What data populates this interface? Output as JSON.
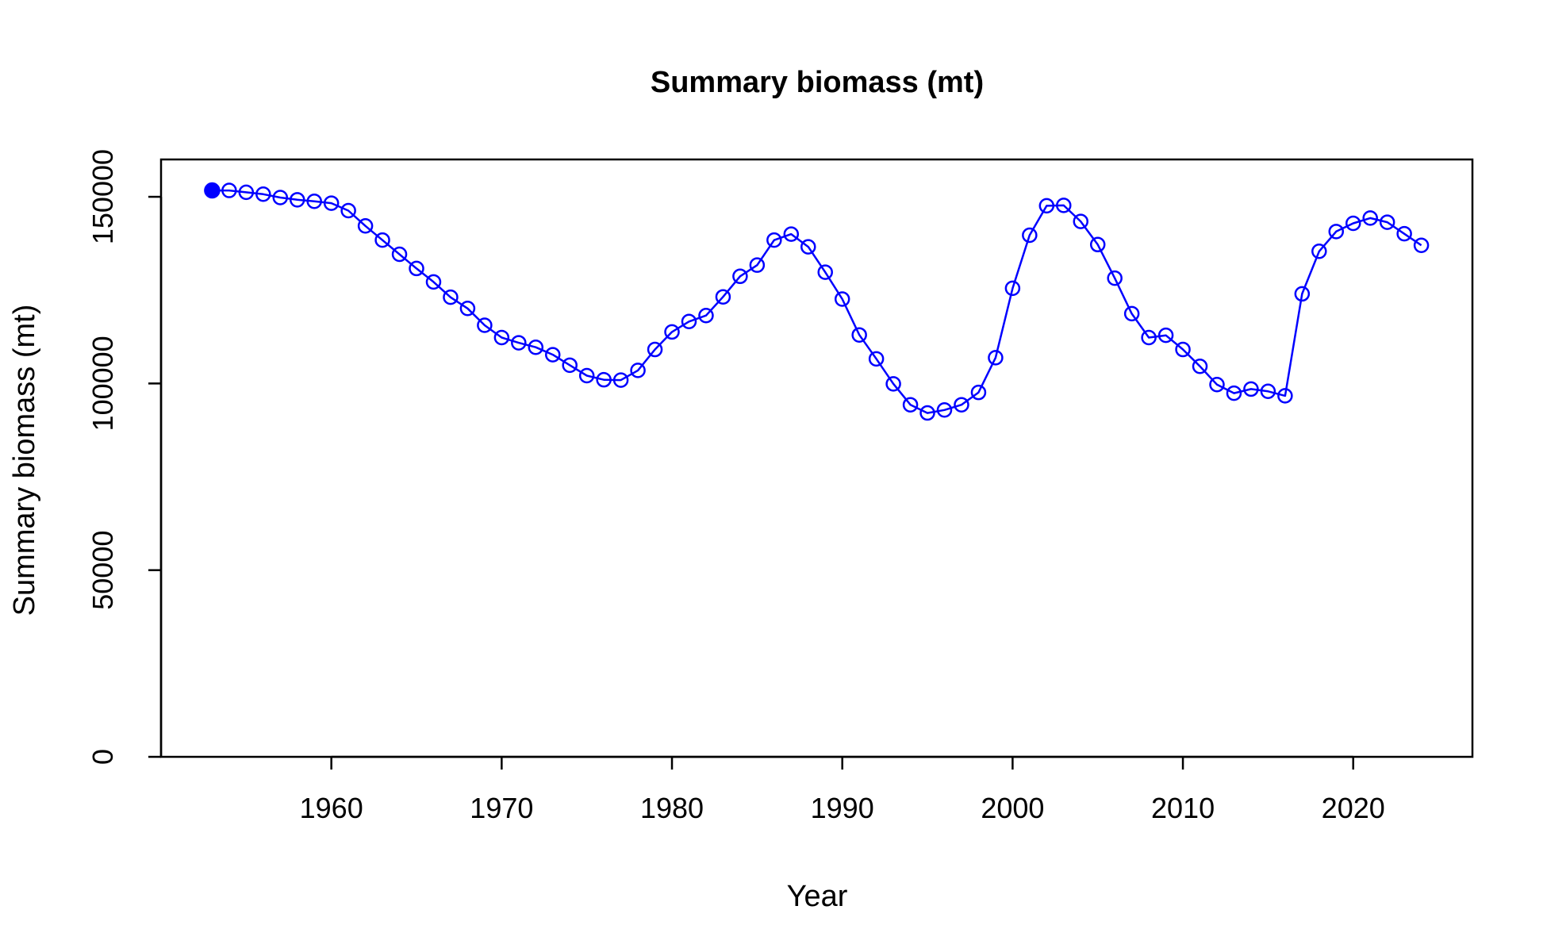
{
  "chart_data": {
    "type": "line",
    "title": "Summary biomass (mt)",
    "xlabel": "Year",
    "ylabel": "Summary biomass (mt)",
    "xlim": [
      1950,
      2027
    ],
    "ylim": [
      0,
      160000
    ],
    "x_ticks": [
      1960,
      1970,
      1980,
      1990,
      2000,
      2010,
      2020
    ],
    "y_ticks": [
      0,
      50000,
      100000,
      150000
    ],
    "line_color": "#0000FF",
    "grid": false,
    "legend": "none",
    "first_point_filled": true,
    "series": [
      {
        "x": [
          1953,
          1954,
          1955,
          1956,
          1957,
          1958,
          1959,
          1960,
          1961,
          1962,
          1963,
          1964,
          1965,
          1966,
          1967,
          1968,
          1969,
          1970,
          1971,
          1972,
          1973,
          1974,
          1975,
          1976,
          1977,
          1978,
          1979,
          1980,
          1981,
          1982,
          1983,
          1984,
          1985,
          1986,
          1987,
          1988,
          1989,
          1990,
          1991,
          1992,
          1993,
          1994,
          1995,
          1996,
          1997,
          1998,
          1999,
          2000,
          2001,
          2002,
          2003,
          2004,
          2005,
          2006,
          2007,
          2008,
          2009,
          2010,
          2011,
          2012,
          2013,
          2014,
          2015,
          2016,
          2017,
          2018,
          2019,
          2020,
          2021,
          2022,
          2023,
          2024
        ],
        "values": [
          151700,
          151700,
          151200,
          150700,
          149800,
          149200,
          148800,
          148300,
          146300,
          142200,
          138400,
          134600,
          130800,
          127200,
          123100,
          120100,
          115600,
          112300,
          110900,
          109700,
          107700,
          104900,
          102100,
          101000,
          100900,
          103500,
          109100,
          113800,
          116600,
          118200,
          123200,
          128700,
          131700,
          138400,
          140000,
          136600,
          129800,
          122600,
          113000,
          106600,
          99900,
          94300,
          92100,
          92900,
          94300,
          97600,
          106900,
          125500,
          139700,
          147600,
          147700,
          143400,
          137200,
          128200,
          118700,
          112300,
          112900,
          109100,
          104600,
          99700,
          97400,
          98500,
          97900,
          96700,
          124000,
          135400,
          140700,
          142900,
          144300,
          143200,
          140100,
          137000
        ]
      }
    ]
  }
}
